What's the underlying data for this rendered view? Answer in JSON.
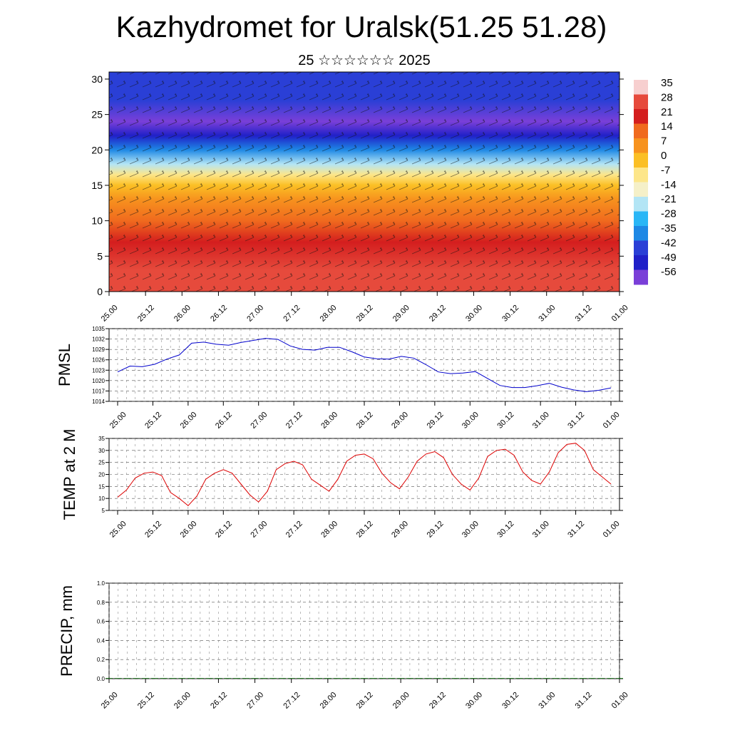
{
  "title": "Kazhydromet for Uralsk(51.25 51.28)",
  "subtitle": "25 ☆☆☆☆☆☆ 2025",
  "chart_data": [
    {
      "type": "heatmap",
      "title": "",
      "x_tick_labels": [
        "25.00",
        "25.12",
        "26.00",
        "26.12",
        "27.00",
        "27.12",
        "28.00",
        "28.12",
        "29.00",
        "29.12",
        "30.00",
        "30.12",
        "31.00",
        "31.12",
        "01.00"
      ],
      "y_ticks": [
        0,
        5,
        10,
        15,
        20,
        25,
        30
      ],
      "ylim": [
        0,
        31
      ],
      "colorbar": {
        "labels": [
          "35",
          "28",
          "21",
          "14",
          "7",
          "0",
          "-7",
          "-14",
          "-21",
          "-28",
          "-35",
          "-42",
          "-49",
          "-56"
        ],
        "colors": [
          "#f7cfcf",
          "#e64a3c",
          "#d41e1e",
          "#f06a1e",
          "#f7921e",
          "#fbbf24",
          "#fde68a",
          "#f5f0c8",
          "#b3e5f5",
          "#29b6f6",
          "#1e88e5",
          "#2a3fd6",
          "#2020c8",
          "#7a3fd8"
        ]
      },
      "profile": {
        "levels_km": [
          0,
          3,
          7,
          10,
          13,
          15,
          16.5,
          18,
          20,
          22,
          24,
          27,
          31
        ],
        "values_c": [
          30,
          25,
          20,
          14,
          8,
          0,
          -10,
          -22,
          -35,
          -52,
          -58,
          -45,
          -40
        ]
      },
      "series": [
        {
          "values_c": []
        }
      ]
    },
    {
      "type": "line",
      "ylabel": "PMSL",
      "ylim": [
        1014,
        1035
      ],
      "y_ticks": [
        1014,
        1017,
        1020,
        1023,
        1026,
        1029,
        1032,
        1035
      ],
      "x_tick_labels": [
        "25.00",
        "25.12",
        "26.00",
        "26.12",
        "27.00",
        "27.12",
        "28.00",
        "28.12",
        "29.00",
        "29.12",
        "30.00",
        "30.12",
        "31.00",
        "31.12",
        "01.00"
      ],
      "color": "#0000cc",
      "series": [
        {
          "values": [
            1022.5,
            1024.2,
            1024.0,
            1024.7,
            1026.2,
            1027.4,
            1030.8,
            1031.1,
            1030.5,
            1030.2,
            1031.0,
            1031.6,
            1032.2,
            1031.9,
            1030.0,
            1029.0,
            1028.8,
            1029.6,
            1029.6,
            1028.3,
            1026.8,
            1026.3,
            1026.2,
            1027.0,
            1026.5,
            1024.6,
            1022.5,
            1022.0,
            1022.2,
            1022.6,
            1020.6,
            1018.6,
            1018.0,
            1018.0,
            1018.5,
            1019.2,
            1018.1,
            1017.3,
            1016.8,
            1017.2,
            1017.9
          ]
        }
      ]
    },
    {
      "type": "line",
      "ylabel": "TEMP at 2 M",
      "ylim": [
        5,
        35
      ],
      "y_ticks": [
        5,
        10,
        15,
        20,
        25,
        30,
        35
      ],
      "x_tick_labels": [
        "25.00",
        "25.12",
        "26.00",
        "26.12",
        "27.00",
        "27.12",
        "28.00",
        "28.12",
        "29.00",
        "29.12",
        "30.00",
        "30.12",
        "31.00",
        "31.12",
        "01.00"
      ],
      "color": "#dd0000",
      "series": [
        {
          "values": [
            10.5,
            13.5,
            18.5,
            20.5,
            21.0,
            19.5,
            12.5,
            10.0,
            7.0,
            11.0,
            18.0,
            20.5,
            22.0,
            20.5,
            16.0,
            11.5,
            8.5,
            13.0,
            22.0,
            24.5,
            25.5,
            24.0,
            18.0,
            15.5,
            13.0,
            18.0,
            25.5,
            28.0,
            28.5,
            26.5,
            20.5,
            16.5,
            14.0,
            19.0,
            25.5,
            28.5,
            29.5,
            27.0,
            20.0,
            16.0,
            13.5,
            18.5,
            27.5,
            30.0,
            30.5,
            28.0,
            21.0,
            17.5,
            16.0,
            21.0,
            29.0,
            32.5,
            33.0,
            30.0,
            22.0,
            19.0,
            16.0
          ]
        }
      ]
    },
    {
      "type": "bar",
      "ylabel": "PRECIP, mm",
      "ylim": [
        0.0,
        1.0
      ],
      "y_tick_labels": [
        "0.0",
        "0.2",
        "0.4",
        "0.6",
        "0.8",
        "1.0"
      ],
      "x_tick_labels": [
        "25.00",
        "25.12",
        "26.00",
        "26.12",
        "27.00",
        "27.12",
        "28.00",
        "28.12",
        "29.00",
        "29.12",
        "30.00",
        "30.12",
        "31.00",
        "31.12",
        "01.00"
      ],
      "color": "#006600",
      "series": [
        {
          "values": [
            0,
            0,
            0,
            0,
            0,
            0,
            0,
            0,
            0,
            0,
            0,
            0,
            0,
            0,
            0,
            0,
            0,
            0,
            0,
            0,
            0,
            0,
            0,
            0,
            0,
            0,
            0,
            0,
            0,
            0,
            0,
            0,
            0,
            0,
            0,
            0,
            0,
            0,
            0,
            0,
            0,
            0,
            0,
            0,
            0,
            0,
            0,
            0,
            0,
            0,
            0,
            0,
            0,
            0,
            0,
            0,
            0
          ]
        }
      ]
    }
  ]
}
